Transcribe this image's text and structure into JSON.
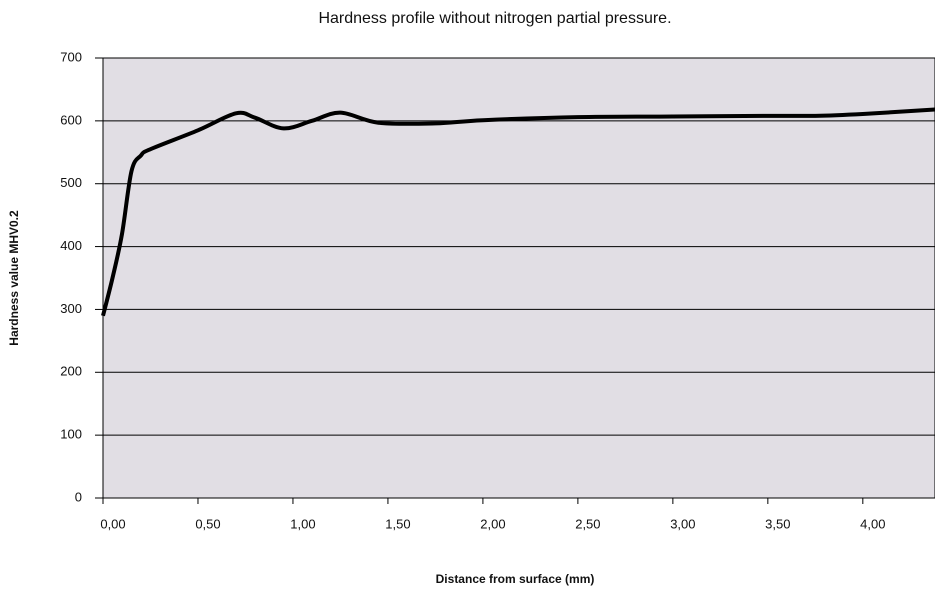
{
  "chart_data": {
    "type": "line",
    "title": "Hardness profile without nitrogen partial pressure.",
    "xlabel": "Distance from surface (mm)",
    "ylabel": "Hardness value MHV0.2",
    "x": [
      0,
      0.05,
      0.1,
      0.15,
      0.2,
      0.25,
      0.5,
      0.7,
      0.8,
      0.95,
      1.1,
      1.25,
      1.45,
      1.75,
      2.0,
      2.5,
      3.0,
      3.5,
      3.75,
      4.0,
      4.38
    ],
    "values": [
      290,
      350,
      420,
      520,
      545,
      555,
      585,
      612,
      605,
      588,
      600,
      613,
      597,
      596,
      601,
      606,
      607,
      608,
      608,
      611,
      618
    ],
    "color": "#000000",
    "xlim": [
      0,
      4.38
    ],
    "xticks": [
      {
        "value": 0,
        "label": "0,00"
      },
      {
        "value": 0.5,
        "label": "0,50"
      },
      {
        "value": 1,
        "label": "1,00"
      },
      {
        "value": 1.5,
        "label": "1,50"
      },
      {
        "value": 2,
        "label": "2,00"
      },
      {
        "value": 2.5,
        "label": "2,50"
      },
      {
        "value": 3,
        "label": "3,00"
      },
      {
        "value": 3.5,
        "label": "3,50"
      },
      {
        "value": 4,
        "label": "4,00"
      }
    ],
    "ylim": [
      0,
      700
    ],
    "yticks": [
      0,
      100,
      200,
      300,
      400,
      500,
      600,
      700
    ],
    "grid": true
  }
}
